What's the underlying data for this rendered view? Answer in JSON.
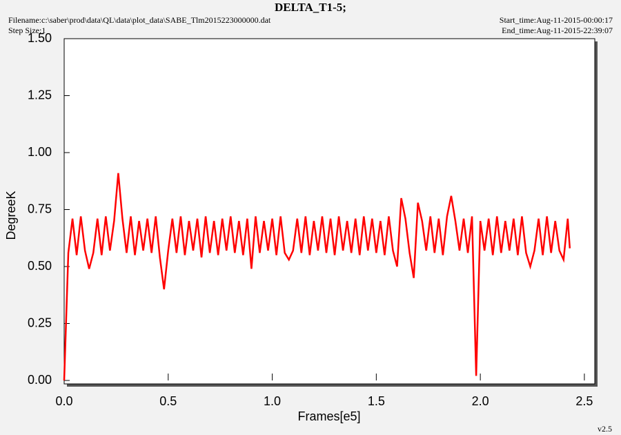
{
  "chart_data": {
    "type": "line",
    "title": "DELTA_T1-5;",
    "filename": "Filename:c:\\saber\\prod\\data\\QL\\data\\plot_data\\SABE_Tlm2015223000000.dat",
    "step_size": "Step Size:1",
    "start_time": "Start_time:Aug-11-2015-00:00:17",
    "end_time": "End_time:Aug-11-2015-22:39:07",
    "version": "v2.5",
    "x_label": "Frames[e5]",
    "y_label": "DegreeK",
    "xlim": [
      0,
      2.55
    ],
    "ylim": [
      0,
      1.5
    ],
    "xticks": [
      {
        "value": 0,
        "label": "0.0"
      },
      0.5,
      {
        "value": 1,
        "label": "1.0"
      },
      1.5,
      {
        "value": 2,
        "label": "2.0"
      },
      2.5
    ],
    "yticks": [
      {
        "value": 0,
        "label": "0.00"
      },
      0.25,
      {
        "value": 0.5,
        "label": "0.50"
      },
      0.75,
      {
        "value": 1,
        "label": "1.00"
      },
      1.25,
      {
        "value": 1.5,
        "label": "1.50"
      }
    ],
    "color": "#ff0000",
    "x": [
      0,
      0.02,
      0.04,
      0.06,
      0.08,
      0.1,
      0.12,
      0.14,
      0.16,
      0.18,
      0.2,
      0.22,
      0.24,
      0.26,
      0.28,
      0.3,
      0.32,
      0.34,
      0.36,
      0.38,
      0.4,
      0.42,
      0.44,
      0.46,
      0.48,
      0.5,
      0.52,
      0.54,
      0.56,
      0.58,
      0.6,
      0.62,
      0.64,
      0.66,
      0.68,
      0.7,
      0.72,
      0.74,
      0.76,
      0.78,
      0.8,
      0.82,
      0.84,
      0.86,
      0.88,
      0.9,
      0.92,
      0.94,
      0.96,
      0.98,
      1,
      1.02,
      1.04,
      1.06,
      1.08,
      1.1,
      1.12,
      1.14,
      1.16,
      1.18,
      1.2,
      1.22,
      1.24,
      1.26,
      1.28,
      1.3,
      1.32,
      1.34,
      1.36,
      1.38,
      1.4,
      1.42,
      1.44,
      1.46,
      1.48,
      1.5,
      1.52,
      1.54,
      1.56,
      1.58,
      1.6,
      1.62,
      1.64,
      1.66,
      1.68,
      1.7,
      1.72,
      1.74,
      1.76,
      1.78,
      1.8,
      1.82,
      1.84,
      1.86,
      1.88,
      1.9,
      1.92,
      1.94,
      1.96,
      1.98,
      2,
      2.02,
      2.04,
      2.06,
      2.08,
      2.1,
      2.12,
      2.14,
      2.16,
      2.18,
      2.2,
      2.22,
      2.24,
      2.26,
      2.28,
      2.3,
      2.32,
      2.34,
      2.36,
      2.38,
      2.4,
      2.42,
      2.43
    ],
    "values": [
      0,
      0.56,
      0.71,
      0.55,
      0.72,
      0.57,
      0.49,
      0.56,
      0.71,
      0.55,
      0.72,
      0.57,
      0.7,
      0.91,
      0.71,
      0.56,
      0.72,
      0.55,
      0.7,
      0.57,
      0.71,
      0.56,
      0.72,
      0.54,
      0.4,
      0.57,
      0.71,
      0.56,
      0.72,
      0.55,
      0.7,
      0.57,
      0.71,
      0.54,
      0.72,
      0.56,
      0.7,
      0.55,
      0.71,
      0.57,
      0.72,
      0.56,
      0.7,
      0.55,
      0.71,
      0.49,
      0.72,
      0.56,
      0.7,
      0.57,
      0.71,
      0.55,
      0.72,
      0.56,
      0.53,
      0.57,
      0.71,
      0.56,
      0.72,
      0.55,
      0.7,
      0.57,
      0.72,
      0.56,
      0.71,
      0.55,
      0.72,
      0.57,
      0.7,
      0.56,
      0.71,
      0.55,
      0.72,
      0.57,
      0.71,
      0.56,
      0.7,
      0.55,
      0.72,
      0.57,
      0.5,
      0.8,
      0.71,
      0.56,
      0.45,
      0.78,
      0.7,
      0.57,
      0.72,
      0.56,
      0.71,
      0.55,
      0.72,
      0.81,
      0.7,
      0.57,
      0.71,
      0.56,
      0.72,
      0.02,
      0.7,
      0.57,
      0.71,
      0.55,
      0.72,
      0.56,
      0.7,
      0.57,
      0.71,
      0.55,
      0.72,
      0.56,
      0.5,
      0.57,
      0.71,
      0.55,
      0.72,
      0.56,
      0.7,
      0.57,
      0.53,
      0.71,
      0.58
    ]
  }
}
